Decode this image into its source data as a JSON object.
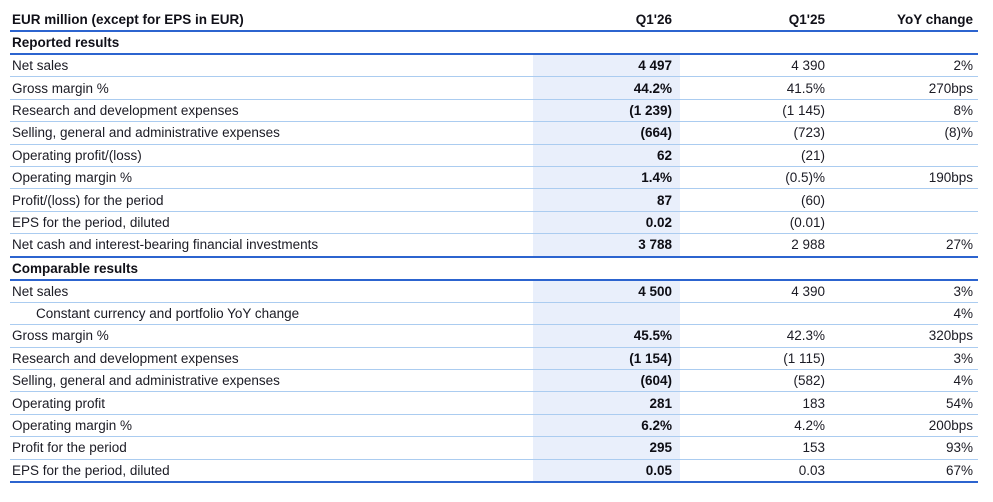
{
  "colors": {
    "strong_rule": "#2c64cf",
    "thin_rule": "#abccf0",
    "q126_highlight": "#e9effb",
    "text": "#1b1b24"
  },
  "table": {
    "header": {
      "label": "EUR million (except for EPS in EUR)",
      "col_q126": "Q1'26",
      "col_q125": "Q1'25",
      "col_yoy": "YoY change"
    },
    "sections": [
      {
        "title": "Reported results",
        "rows": [
          {
            "label": "Net sales",
            "q126": "4 497",
            "q125": "4 390",
            "yoy": "2%"
          },
          {
            "label": "Gross margin %",
            "q126": "44.2%",
            "q125": "41.5%",
            "yoy": "270bps"
          },
          {
            "label": "Research and development expenses",
            "q126": "(1 239)",
            "q125": "(1 145)",
            "yoy": "8%"
          },
          {
            "label": "Selling, general and administrative expenses",
            "q126": "(664)",
            "q125": "(723)",
            "yoy": "(8)%"
          },
          {
            "label": "Operating profit/(loss)",
            "q126": "62",
            "q125": "(21)",
            "yoy": ""
          },
          {
            "label": "Operating margin %",
            "q126": "1.4%",
            "q125": "(0.5)%",
            "yoy": "190bps"
          },
          {
            "label": "Profit/(loss) for the period",
            "q126": "87",
            "q125": "(60)",
            "yoy": ""
          },
          {
            "label": "EPS for the period, diluted",
            "q126": "0.02",
            "q125": "(0.01)",
            "yoy": ""
          },
          {
            "label": "Net cash and interest-bearing financial investments",
            "q126": "3 788",
            "q125": "2 988",
            "yoy": "27%"
          }
        ]
      },
      {
        "title": "Comparable results",
        "rows": [
          {
            "label": "Net sales",
            "q126": "4 500",
            "q125": "4 390",
            "yoy": "3%"
          },
          {
            "label": "Constant currency and portfolio YoY change",
            "q126": "",
            "q125": "",
            "yoy": "4%"
          },
          {
            "label": "Gross margin %",
            "q126": "45.5%",
            "q125": "42.3%",
            "yoy": "320bps"
          },
          {
            "label": "Research and development expenses",
            "q126": "(1 154)",
            "q125": "(1 115)",
            "yoy": "3%"
          },
          {
            "label": "Selling, general and administrative expenses",
            "q126": "(604)",
            "q125": "(582)",
            "yoy": "4%"
          },
          {
            "label": "Operating profit",
            "q126": "281",
            "q125": "183",
            "yoy": "54%"
          },
          {
            "label": "Operating margin %",
            "q126": "6.2%",
            "q125": "4.2%",
            "yoy": "200bps"
          },
          {
            "label": "Profit for the period",
            "q126": "295",
            "q125": "153",
            "yoy": "93%"
          },
          {
            "label": "EPS for the period, diluted",
            "q126": "0.05",
            "q125": "0.03",
            "yoy": "67%"
          }
        ]
      }
    ]
  }
}
